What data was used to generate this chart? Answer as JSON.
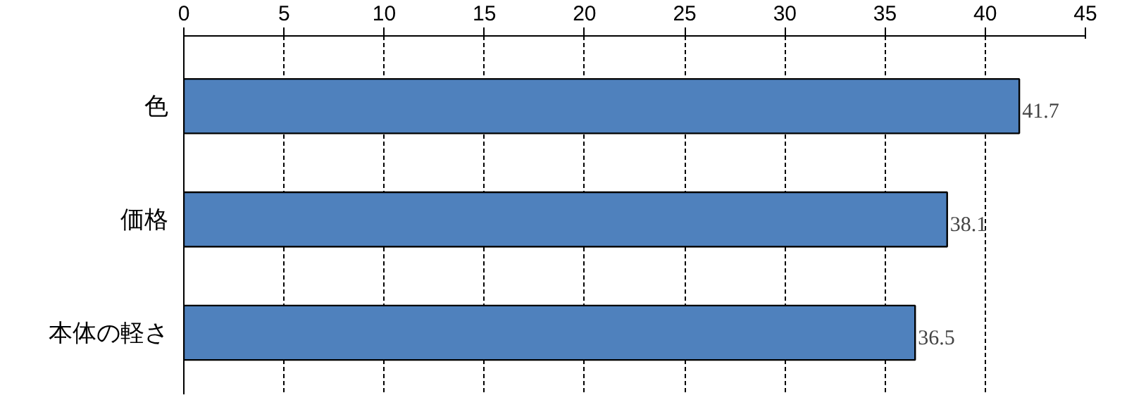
{
  "chart_data": {
    "type": "bar",
    "orientation": "horizontal",
    "categories": [
      "色",
      "価格",
      "本体の軽さ"
    ],
    "values": [
      41.7,
      38.1,
      36.5
    ],
    "color": "#4f81bd",
    "xlim": [
      0,
      45
    ],
    "xticks": [
      0,
      5,
      10,
      15,
      20,
      25,
      30,
      35,
      40,
      45
    ],
    "grid": "x",
    "data_labels": true
  }
}
